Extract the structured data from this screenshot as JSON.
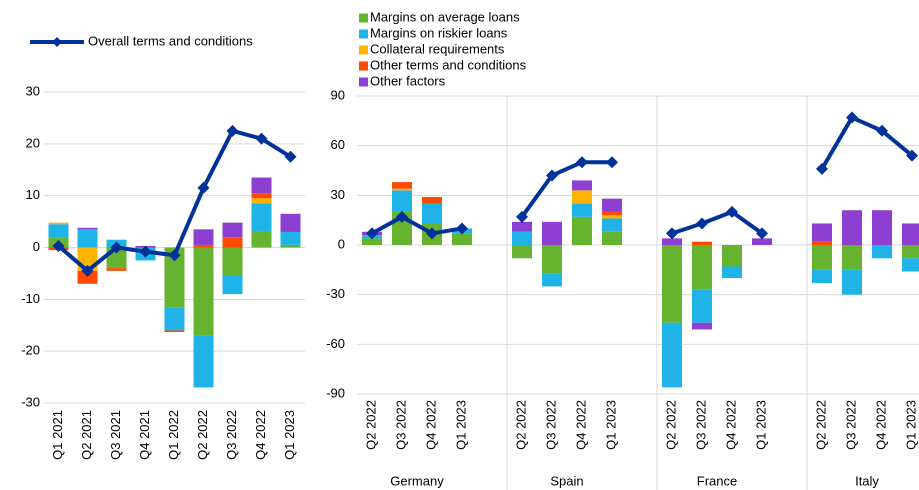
{
  "chart_data": [
    {
      "type": "bar",
      "categories": [
        "Q1 2021",
        "Q2 2021",
        "Q3 2021",
        "Q4 2021",
        "Q1 2022",
        "Q2 2022",
        "Q3 2022",
        "Q4 2022",
        "Q1 2023"
      ],
      "ylim": [
        -30,
        30
      ],
      "yticks": [
        -30,
        -20,
        -10,
        0,
        10,
        20,
        30
      ],
      "grid": true,
      "series": [
        {
          "name": "Margins on average loans",
          "color": "#65b32e",
          "values": [
            2,
            0,
            -4,
            0,
            -11.5,
            -17,
            -5.5,
            3,
            0.5
          ]
        },
        {
          "name": "Margins on riskier loans",
          "color": "#1fb3e8",
          "values": [
            2.5,
            3.5,
            1.5,
            -2.5,
            -4.5,
            -10,
            -3.5,
            5.5,
            2.5
          ]
        },
        {
          "name": "Collateral requirements",
          "color": "#ffb400",
          "values": [
            0.3,
            -4.5,
            0,
            0,
            0,
            0,
            0,
            1,
            0
          ]
        },
        {
          "name": "Other terms and conditions",
          "color": "#ff4b00",
          "values": [
            -0.5,
            -2.5,
            -0.5,
            0,
            -0.3,
            0.5,
            2,
            1,
            0
          ]
        },
        {
          "name": "Other factors",
          "color": "#8c3fd1",
          "values": [
            0,
            0.3,
            0,
            0.3,
            0,
            3,
            2.8,
            3,
            3.5
          ]
        },
        {
          "name": "Overall terms and conditions",
          "type": "line",
          "color": "#003299",
          "values": [
            0.3,
            -4.5,
            0,
            -0.8,
            -1.5,
            11.5,
            22.5,
            21,
            17.5
          ]
        }
      ]
    },
    {
      "type": "bar",
      "groups": [
        "Germany",
        "Spain",
        "France",
        "Italy"
      ],
      "categories": [
        "Q2 2022",
        "Q3 2022",
        "Q4 2022",
        "Q1 2023",
        "Q2 2022",
        "Q3 2022",
        "Q4 2022",
        "Q1 2023",
        "Q2 2022",
        "Q3 2022",
        "Q4 2022",
        "Q1 2023",
        "Q2 2022",
        "Q3 2022",
        "Q4 2022",
        "Q1 2023"
      ],
      "ylim": [
        -90,
        90
      ],
      "yticks": [
        -90,
        -60,
        -30,
        0,
        30,
        60,
        90
      ],
      "grid": true,
      "series": [
        {
          "color": "#65b32e",
          "values": [
            4,
            20,
            13,
            7,
            -8,
            -17,
            17,
            8,
            -47,
            -27,
            -13,
            0,
            -15,
            -15,
            0,
            -8
          ]
        },
        {
          "color": "#1fb3e8",
          "values": [
            2,
            13,
            12,
            3,
            8,
            -8,
            8,
            8,
            -39,
            -20,
            -7,
            0,
            -8,
            -15,
            -8,
            -8
          ]
        },
        {
          "color": "#ffb400",
          "values": [
            0,
            1,
            0,
            0,
            0,
            0,
            8,
            2,
            0,
            0,
            0,
            0,
            0,
            0,
            0,
            0
          ]
        },
        {
          "color": "#ff4b00",
          "values": [
            0,
            4,
            4,
            0,
            0,
            0,
            0,
            2,
            0,
            2,
            0,
            0,
            2,
            0,
            0,
            0
          ]
        },
        {
          "color": "#8c3fd1",
          "values": [
            2,
            0,
            0,
            0,
            6,
            14,
            6,
            8,
            4,
            -4,
            0,
            4,
            11,
            21,
            21,
            13
          ]
        },
        {
          "type": "line",
          "color": "#003299",
          "values": [
            7,
            17,
            7,
            10,
            17,
            42,
            50,
            50,
            7,
            13,
            20,
            7,
            46,
            77,
            69,
            54
          ]
        }
      ]
    }
  ]
}
